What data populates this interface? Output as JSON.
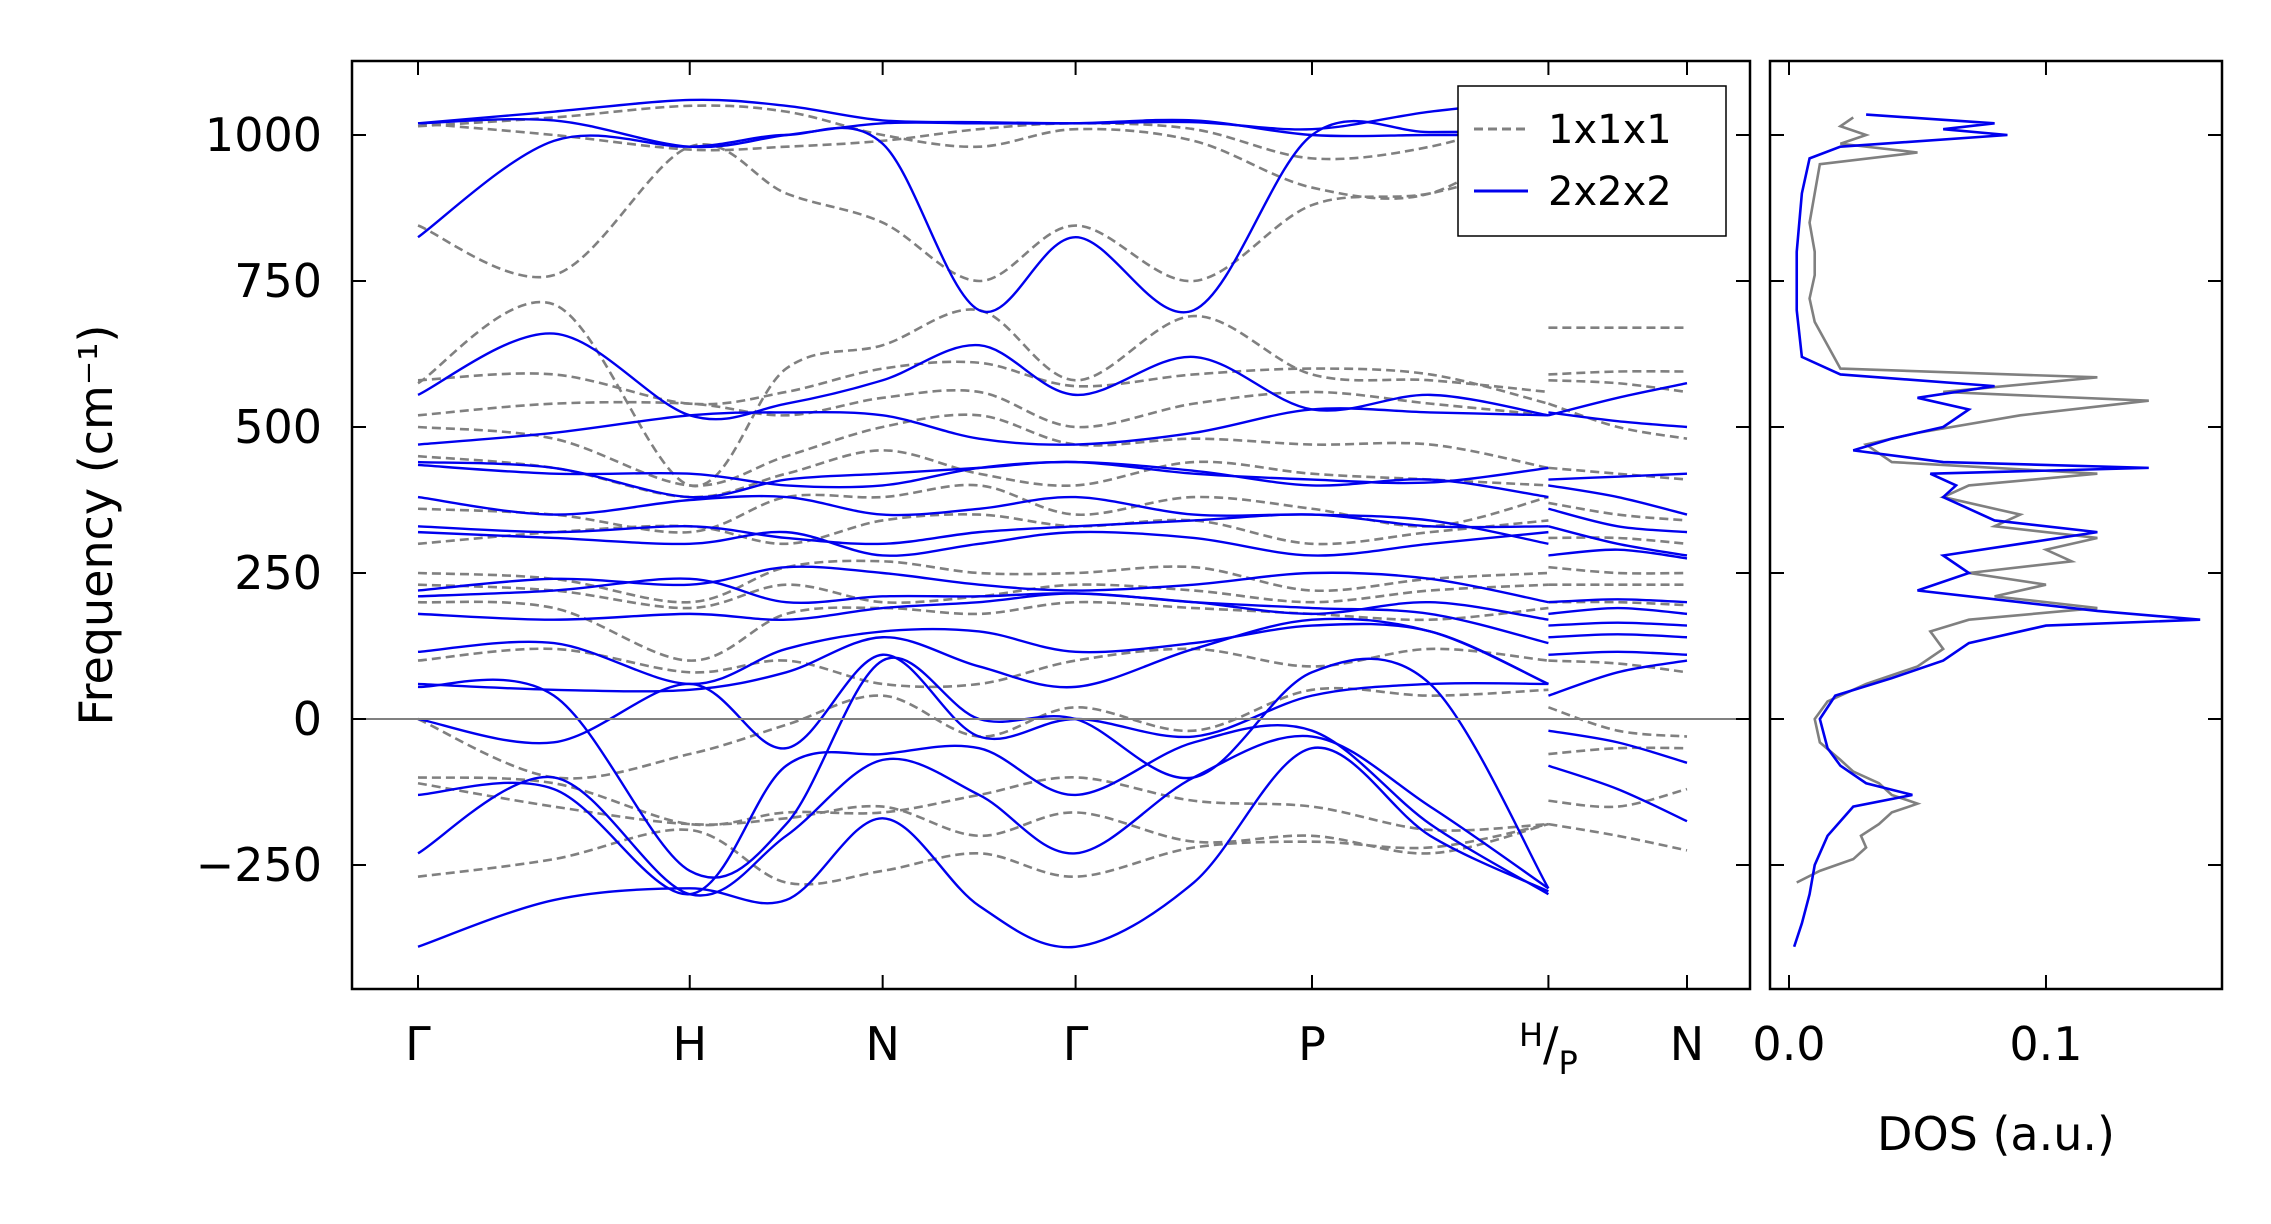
{
  "chart_data": {
    "type": "line",
    "title": "",
    "ylabel": "Frequency (cm⁻¹)",
    "ylim": [
      -462,
      1127
    ],
    "yticks": [
      -250,
      0,
      250,
      500,
      750,
      1000
    ],
    "ytick_labels": [
      "−250",
      "0",
      "250",
      "500",
      "750",
      "1000"
    ],
    "kpath_labels": [
      "Γ",
      "H",
      "N",
      "Γ",
      "P",
      "H/P",
      "N"
    ],
    "kpath_positions": [
      0,
      1.0,
      1.71,
      2.42,
      3.29,
      4.16,
      4.67
    ],
    "kgrid": [
      0,
      0.5,
      1.0,
      1.355,
      1.71,
      2.065,
      2.42,
      2.855,
      3.29,
      3.725,
      4.16
    ],
    "kgrid_last": [
      4.16,
      4.415,
      4.67
    ],
    "legend": {
      "position": "top-right",
      "entries": [
        "1x1x1",
        "2x2x2"
      ]
    },
    "colors": {
      "1x1x1": "#808080",
      "2x2x2": "#0000ee",
      "zero_line": "#808080"
    },
    "series": [
      {
        "name": "1x1x1",
        "style": "dashed",
        "bands": [
          [
            1020,
            1000,
            975,
            980,
            990,
            1010,
            1020,
            1010,
            960,
            980,
            1040,
            null,
            null,
            null
          ],
          [
            1015,
            1030,
            1050,
            1040,
            1000,
            980,
            1010,
            990,
            910,
            900,
            1020,
            null,
            null,
            null
          ],
          [
            845,
            760,
            980,
            900,
            850,
            750,
            845,
            750,
            880,
            900,
            960,
            null,
            null,
            null
          ],
          [
            575,
            710,
            400,
            600,
            640,
            700,
            580,
            690,
            590,
            580,
            560,
            670,
            670,
            670
          ],
          [
            580,
            590,
            540,
            560,
            600,
            610,
            570,
            590,
            600,
            590,
            540,
            590,
            595,
            595
          ],
          [
            520,
            540,
            540,
            520,
            550,
            560,
            500,
            540,
            560,
            540,
            520,
            580,
            575,
            560
          ],
          [
            500,
            480,
            400,
            450,
            500,
            520,
            470,
            480,
            470,
            470,
            430,
            540,
            500,
            480
          ],
          [
            450,
            430,
            380,
            420,
            460,
            420,
            400,
            440,
            420,
            410,
            400,
            430,
            420,
            410
          ],
          [
            360,
            350,
            320,
            380,
            380,
            400,
            350,
            380,
            360,
            330,
            380,
            370,
            350,
            340
          ],
          [
            300,
            320,
            330,
            300,
            340,
            350,
            330,
            340,
            300,
            320,
            340,
            310,
            310,
            300
          ],
          [
            250,
            240,
            200,
            260,
            270,
            250,
            250,
            260,
            220,
            240,
            250,
            260,
            250,
            250
          ],
          [
            230,
            220,
            190,
            230,
            200,
            210,
            230,
            220,
            200,
            220,
            230,
            230,
            230,
            230
          ],
          [
            200,
            190,
            100,
            180,
            190,
            180,
            200,
            190,
            180,
            170,
            190,
            200,
            200,
            195
          ],
          [
            100,
            120,
            80,
            100,
            60,
            60,
            100,
            120,
            90,
            120,
            100,
            100,
            95,
            80
          ],
          [
            0,
            -100,
            -60,
            -10,
            40,
            -30,
            20,
            -20,
            50,
            40,
            50,
            20,
            -20,
            -30
          ],
          [
            -100,
            -110,
            -180,
            -160,
            -160,
            -130,
            -100,
            -140,
            -150,
            -190,
            -180,
            -60,
            -50,
            -50
          ],
          [
            -110,
            -150,
            -180,
            -170,
            -150,
            -200,
            -160,
            -210,
            -200,
            -230,
            -180,
            -140,
            -150,
            -120
          ],
          [
            -270,
            -240,
            -190,
            -280,
            -260,
            -230,
            -270,
            -220,
            -210,
            -220,
            -180,
            -180,
            -200,
            -225
          ]
        ]
      },
      {
        "name": "2x2x2",
        "style": "solid",
        "bands": [
          [
            1020,
            1040,
            1060,
            1050,
            1025,
            1022,
            1020,
            1022,
            1010,
            1040,
            1060,
            null,
            null,
            null
          ],
          [
            1020,
            1025,
            980,
            1000,
            1020,
            1020,
            1020,
            1025,
            1000,
            1000,
            1000,
            null,
            null,
            null
          ],
          [
            825,
            990,
            980,
            1000,
            985,
            700,
            825,
            700,
            1000,
            1005,
            1005,
            null,
            null,
            null
          ],
          [
            555,
            660,
            520,
            540,
            580,
            640,
            555,
            620,
            530,
            555,
            520,
            520,
            550,
            575
          ],
          [
            470,
            490,
            520,
            525,
            520,
            480,
            470,
            490,
            530,
            525,
            520,
            525,
            510,
            500
          ],
          [
            440,
            430,
            380,
            410,
            420,
            430,
            440,
            420,
            410,
            405,
            430,
            410,
            415,
            420
          ],
          [
            435,
            420,
            420,
            400,
            400,
            430,
            440,
            425,
            400,
            410,
            380,
            400,
            380,
            350
          ],
          [
            380,
            350,
            375,
            380,
            350,
            360,
            380,
            350,
            350,
            340,
            300,
            360,
            330,
            320
          ],
          [
            330,
            320,
            330,
            310,
            300,
            320,
            330,
            340,
            350,
            330,
            330,
            330,
            300,
            280
          ],
          [
            320,
            310,
            300,
            320,
            280,
            300,
            320,
            310,
            280,
            300,
            320,
            280,
            290,
            275
          ],
          [
            220,
            240,
            230,
            260,
            250,
            230,
            220,
            230,
            250,
            240,
            200,
            200,
            205,
            200
          ],
          [
            210,
            220,
            240,
            200,
            210,
            210,
            215,
            200,
            180,
            200,
            170,
            180,
            190,
            180
          ],
          [
            180,
            170,
            180,
            170,
            190,
            200,
            215,
            200,
            190,
            180,
            130,
            160,
            165,
            160
          ],
          [
            115,
            130,
            60,
            120,
            150,
            150,
            115,
            130,
            160,
            150,
            60,
            140,
            145,
            140
          ],
          [
            60,
            50,
            50,
            80,
            140,
            90,
            55,
            120,
            170,
            150,
            60,
            110,
            115,
            110
          ],
          [
            0,
            -40,
            60,
            -50,
            110,
            -30,
            0,
            -30,
            40,
            60,
            60,
            40,
            80,
            100
          ],
          [
            55,
            40,
            -260,
            -180,
            100,
            0,
            0,
            -100,
            80,
            60,
            -290,
            null,
            null,
            null
          ],
          [
            -130,
            -120,
            -300,
            -80,
            -60,
            -50,
            -130,
            -40,
            -20,
            -180,
            -300,
            -20,
            -40,
            -75
          ],
          [
            -230,
            -100,
            -300,
            -200,
            -70,
            -130,
            -230,
            -100,
            -30,
            -150,
            -290,
            -80,
            -120,
            -175
          ],
          [
            -390,
            -310,
            -290,
            -310,
            -170,
            -320,
            -390,
            -280,
            -50,
            -200,
            -295,
            null,
            null,
            null
          ]
        ]
      }
    ],
    "dos": {
      "xlabel": "DOS (a.u.)",
      "xlim": [
        -0.0074,
        0.1685
      ],
      "xticks": [
        0.0,
        0.1
      ],
      "xtick_labels": [
        "0.0",
        "0.1"
      ],
      "series": [
        {
          "name": "1x1x1",
          "points": [
            [
              -280,
              0.003
            ],
            [
              -260,
              0.012
            ],
            [
              -240,
              0.025
            ],
            [
              -220,
              0.03
            ],
            [
              -200,
              0.028
            ],
            [
              -180,
              0.035
            ],
            [
              -160,
              0.04
            ],
            [
              -145,
              0.05
            ],
            [
              -130,
              0.04
            ],
            [
              -110,
              0.035
            ],
            [
              -90,
              0.025
            ],
            [
              -70,
              0.02
            ],
            [
              -40,
              0.012
            ],
            [
              0,
              0.01
            ],
            [
              30,
              0.015
            ],
            [
              60,
              0.03
            ],
            [
              90,
              0.05
            ],
            [
              120,
              0.06
            ],
            [
              150,
              0.055
            ],
            [
              170,
              0.07
            ],
            [
              190,
              0.12
            ],
            [
              210,
              0.08
            ],
            [
              230,
              0.1
            ],
            [
              250,
              0.07
            ],
            [
              270,
              0.11
            ],
            [
              290,
              0.1
            ],
            [
              310,
              0.12
            ],
            [
              330,
              0.08
            ],
            [
              350,
              0.09
            ],
            [
              380,
              0.06
            ],
            [
              400,
              0.07
            ],
            [
              420,
              0.12
            ],
            [
              440,
              0.04
            ],
            [
              470,
              0.03
            ],
            [
              490,
              0.05
            ],
            [
              520,
              0.09
            ],
            [
              545,
              0.14
            ],
            [
              560,
              0.06
            ],
            [
              585,
              0.12
            ],
            [
              600,
              0.02
            ],
            [
              640,
              0.015
            ],
            [
              680,
              0.01
            ],
            [
              720,
              0.008
            ],
            [
              760,
              0.01
            ],
            [
              800,
              0.01
            ],
            [
              850,
              0.008
            ],
            [
              900,
              0.01
            ],
            [
              950,
              0.012
            ],
            [
              970,
              0.05
            ],
            [
              985,
              0.02
            ],
            [
              1000,
              0.03
            ],
            [
              1015,
              0.02
            ],
            [
              1030,
              0.025
            ]
          ]
        },
        {
          "name": "2x2x2",
          "points": [
            [
              -390,
              0.002
            ],
            [
              -350,
              0.005
            ],
            [
              -300,
              0.008
            ],
            [
              -250,
              0.01
            ],
            [
              -200,
              0.015
            ],
            [
              -150,
              0.025
            ],
            [
              -130,
              0.048
            ],
            [
              -110,
              0.03
            ],
            [
              -80,
              0.02
            ],
            [
              -50,
              0.015
            ],
            [
              0,
              0.012
            ],
            [
              40,
              0.018
            ],
            [
              70,
              0.04
            ],
            [
              100,
              0.06
            ],
            [
              130,
              0.07
            ],
            [
              160,
              0.1
            ],
            [
              170,
              0.16
            ],
            [
              185,
              0.12
            ],
            [
              200,
              0.09
            ],
            [
              220,
              0.05
            ],
            [
              250,
              0.07
            ],
            [
              280,
              0.06
            ],
            [
              300,
              0.09
            ],
            [
              320,
              0.12
            ],
            [
              340,
              0.08
            ],
            [
              380,
              0.06
            ],
            [
              400,
              0.065
            ],
            [
              420,
              0.055
            ],
            [
              430,
              0.14
            ],
            [
              440,
              0.06
            ],
            [
              460,
              0.025
            ],
            [
              480,
              0.04
            ],
            [
              500,
              0.06
            ],
            [
              530,
              0.07
            ],
            [
              550,
              0.05
            ],
            [
              570,
              0.08
            ],
            [
              590,
              0.02
            ],
            [
              620,
              0.005
            ],
            [
              700,
              0.003
            ],
            [
              800,
              0.003
            ],
            [
              900,
              0.005
            ],
            [
              960,
              0.008
            ],
            [
              980,
              0.02
            ],
            [
              1000,
              0.085
            ],
            [
              1010,
              0.06
            ],
            [
              1020,
              0.08
            ],
            [
              1035,
              0.03
            ]
          ]
        }
      ]
    }
  }
}
